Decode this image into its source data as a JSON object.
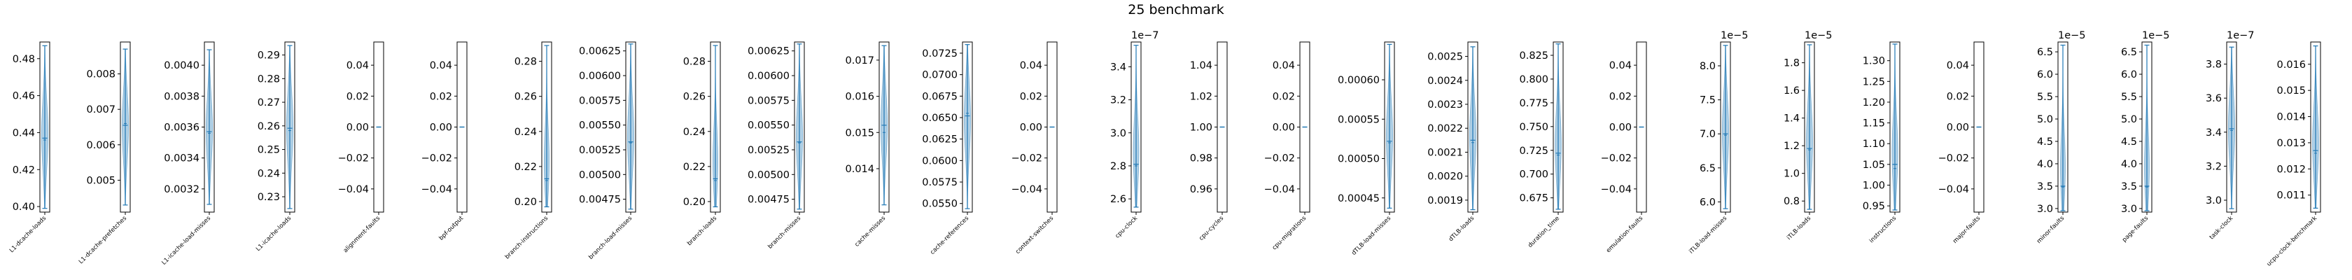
{
  "chart_data": {
    "type": "violin",
    "title": "25 benchmark",
    "grid": false,
    "panels": [
      {
        "label": "L1-dcache-loads",
        "yticks": [
          "0.40",
          "0.42",
          "0.44",
          "0.46",
          "0.48"
        ],
        "ylim": [
          0.397,
          0.489
        ],
        "min": 0.399,
        "max": 0.487,
        "mean": 0.437,
        "median": 0.436,
        "exponent": ""
      },
      {
        "label": "L1-dcache-prefetches",
        "yticks": [
          "0.005",
          "0.006",
          "0.007",
          "0.008"
        ],
        "ylim": [
          0.0041,
          0.0089
        ],
        "min": 0.0043,
        "max": 0.0087,
        "mean": 0.00655,
        "median": 0.0066,
        "exponent": ""
      },
      {
        "label": "L1-icache-load-misses",
        "yticks": [
          "0.0032",
          "0.0034",
          "0.0036",
          "0.0038",
          "0.0040"
        ],
        "ylim": [
          0.00305,
          0.00415
        ],
        "min": 0.0031,
        "max": 0.0041,
        "mean": 0.00357,
        "median": 0.00356,
        "exponent": ""
      },
      {
        "label": "L1-icache-loads",
        "yticks": [
          "0.23",
          "0.24",
          "0.25",
          "0.26",
          "0.27",
          "0.28",
          "0.29"
        ],
        "ylim": [
          0.2235,
          0.2955
        ],
        "min": 0.225,
        "max": 0.294,
        "mean": 0.259,
        "median": 0.258,
        "exponent": ""
      },
      {
        "label": "alignment-faults",
        "yticks": [
          "−0.04",
          "−0.02",
          "0.00",
          "0.02",
          "0.04"
        ],
        "ylim": [
          -0.055,
          0.055
        ],
        "min": 0.0,
        "max": 0.0,
        "mean": 0.0,
        "median": 0.0,
        "exponent": ""
      },
      {
        "label": "bpf-output",
        "yticks": [
          "−0.04",
          "−0.02",
          "0.00",
          "0.02",
          "0.04"
        ],
        "ylim": [
          -0.055,
          0.055
        ],
        "min": 0.0,
        "max": 0.0,
        "mean": 0.0,
        "median": 0.0,
        "exponent": ""
      },
      {
        "label": "branch-instructions",
        "yticks": [
          "0.20",
          "0.22",
          "0.24",
          "0.26",
          "0.28"
        ],
        "ylim": [
          0.194,
          0.291
        ],
        "min": 0.197,
        "max": 0.289,
        "mean": 0.213,
        "median": 0.212,
        "exponent": ""
      },
      {
        "label": "branch-load-misses",
        "yticks": [
          "0.00475",
          "0.00500",
          "0.00525",
          "0.00550",
          "0.00575",
          "0.00600",
          "0.00625"
        ],
        "ylim": [
          0.00462,
          0.00634
        ],
        "min": 0.00465,
        "max": 0.00632,
        "mean": 0.00533,
        "median": 0.00532,
        "exponent": ""
      },
      {
        "label": "branch-loads",
        "yticks": [
          "0.20",
          "0.22",
          "0.24",
          "0.26",
          "0.28"
        ],
        "ylim": [
          0.194,
          0.291
        ],
        "min": 0.197,
        "max": 0.289,
        "mean": 0.213,
        "median": 0.212,
        "exponent": ""
      },
      {
        "label": "branch-misses",
        "yticks": [
          "0.00475",
          "0.00500",
          "0.00525",
          "0.00550",
          "0.00575",
          "0.00600",
          "0.00625"
        ],
        "ylim": [
          0.00462,
          0.00634
        ],
        "min": 0.00465,
        "max": 0.00632,
        "mean": 0.00533,
        "median": 0.00532,
        "exponent": ""
      },
      {
        "label": "cache-misses",
        "yticks": [
          "0.014",
          "0.015",
          "0.016",
          "0.017"
        ],
        "ylim": [
          0.0128,
          0.0175
        ],
        "min": 0.013,
        "max": 0.0174,
        "mean": 0.0152,
        "median": 0.015,
        "exponent": ""
      },
      {
        "label": "cache-references",
        "yticks": [
          "0.0550",
          "0.0575",
          "0.0600",
          "0.0625",
          "0.0650",
          "0.0675",
          "0.0700",
          "0.0725"
        ],
        "ylim": [
          0.054,
          0.0738
        ],
        "min": 0.0544,
        "max": 0.0735,
        "mean": 0.0652,
        "median": 0.0655,
        "exponent": ""
      },
      {
        "label": "context-switches",
        "yticks": [
          "−0.04",
          "−0.02",
          "0.00",
          "0.02",
          "0.04"
        ],
        "ylim": [
          -0.055,
          0.055
        ],
        "min": 0.0,
        "max": 0.0,
        "mean": 0.0,
        "median": 0.0,
        "exponent": ""
      },
      {
        "label": "cpu-clock",
        "yticks": [
          "2.6",
          "2.8",
          "3.0",
          "3.2",
          "3.4"
        ],
        "ylim": [
          2.52,
          3.55
        ],
        "min": 2.55,
        "max": 3.53,
        "mean": 2.81,
        "median": 2.8,
        "exponent": "1e−7"
      },
      {
        "label": "cpu-cycles",
        "yticks": [
          "0.96",
          "0.98",
          "1.00",
          "1.02",
          "1.04"
        ],
        "ylim": [
          0.945,
          1.055
        ],
        "min": 1.0,
        "max": 1.0,
        "mean": 1.0,
        "median": 1.0,
        "exponent": ""
      },
      {
        "label": "cpu-migrations",
        "yticks": [
          "−0.04",
          "−0.02",
          "0.00",
          "0.02",
          "0.04"
        ],
        "ylim": [
          -0.055,
          0.055
        ],
        "min": 0.0,
        "max": 0.0,
        "mean": 0.0,
        "median": 0.0,
        "exponent": ""
      },
      {
        "label": "dTLB-load-misses",
        "yticks": [
          "0.00045",
          "0.00050",
          "0.00055",
          "0.00060"
        ],
        "ylim": [
          0.000432,
          0.000648
        ],
        "min": 0.000437,
        "max": 0.000645,
        "mean": 0.000522,
        "median": 0.00052,
        "exponent": ""
      },
      {
        "label": "dTLB-loads",
        "yticks": [
          "0.0019",
          "0.0020",
          "0.0021",
          "0.0022",
          "0.0023",
          "0.0024",
          "0.0025"
        ],
        "ylim": [
          0.00185,
          0.00256
        ],
        "min": 0.00186,
        "max": 0.00254,
        "mean": 0.00215,
        "median": 0.00214,
        "exponent": ""
      },
      {
        "label": "duration_time",
        "yticks": [
          "0.675",
          "0.700",
          "0.725",
          "0.750",
          "0.775",
          "0.800",
          "0.825"
        ],
        "ylim": [
          0.66,
          0.839
        ],
        "min": 0.663,
        "max": 0.837,
        "mean": 0.722,
        "median": 0.72,
        "exponent": ""
      },
      {
        "label": "emulation-faults",
        "yticks": [
          "−0.04",
          "−0.02",
          "0.00",
          "0.02",
          "0.04"
        ],
        "ylim": [
          -0.055,
          0.055
        ],
        "min": 0.0,
        "max": 0.0,
        "mean": 0.0,
        "median": 0.0,
        "exponent": ""
      },
      {
        "label": "iTLB-load-misses",
        "yticks": [
          "6.0",
          "6.5",
          "7.0",
          "7.5",
          "8.0"
        ],
        "ylim": [
          5.85,
          8.35
        ],
        "min": 5.9,
        "max": 8.3,
        "mean": 7.0,
        "median": 6.98,
        "exponent": "1e−5"
      },
      {
        "label": "iTLB-loads",
        "yticks": [
          "0.8",
          "1.0",
          "1.2",
          "1.4",
          "1.6",
          "1.8"
        ],
        "ylim": [
          0.72,
          1.95
        ],
        "min": 0.74,
        "max": 1.93,
        "mean": 1.18,
        "median": 1.17,
        "exponent": "1e−5"
      },
      {
        "label": "instructions",
        "yticks": [
          "0.95",
          "1.00",
          "1.05",
          "1.10",
          "1.15",
          "1.20",
          "1.25",
          "1.30"
        ],
        "ylim": [
          0.935,
          1.345
        ],
        "min": 0.94,
        "max": 1.34,
        "mean": 1.05,
        "median": 1.04,
        "exponent": ""
      },
      {
        "label": "major-faults",
        "yticks": [
          "−0.04",
          "−0.02",
          "0.00",
          "0.02",
          "0.04"
        ],
        "ylim": [
          -0.055,
          0.055
        ],
        "min": 0.0,
        "max": 0.0,
        "mean": 0.0,
        "median": 0.0,
        "exponent": ""
      },
      {
        "label": "minor-faults",
        "yticks": [
          "3.0",
          "3.5",
          "4.0",
          "4.5",
          "5.0",
          "5.5",
          "6.0",
          "6.5"
        ],
        "ylim": [
          2.92,
          6.72
        ],
        "min": 2.95,
        "max": 6.65,
        "mean": 3.5,
        "median": 3.48,
        "exponent": "1e−5"
      },
      {
        "label": "page-faults",
        "yticks": [
          "3.0",
          "3.5",
          "4.0",
          "4.5",
          "5.0",
          "5.5",
          "6.0",
          "6.5"
        ],
        "ylim": [
          2.92,
          6.72
        ],
        "min": 2.95,
        "max": 6.65,
        "mean": 3.5,
        "median": 3.48,
        "exponent": "1e−5"
      },
      {
        "label": "task-clock",
        "yticks": [
          "3.0",
          "3.2",
          "3.4",
          "3.6",
          "3.8"
        ],
        "ylim": [
          2.93,
          3.93
        ],
        "min": 2.95,
        "max": 3.9,
        "mean": 3.42,
        "median": 3.41,
        "exponent": "1e−7"
      },
      {
        "label": "ucpu-clock-benchmark",
        "yticks": [
          "0.011",
          "0.012",
          "0.013",
          "0.014",
          "0.015",
          "0.016"
        ],
        "ylim": [
          0.01035,
          0.01685
        ],
        "min": 0.0105,
        "max": 0.0167,
        "mean": 0.0127,
        "median": 0.0126,
        "exponent": ""
      }
    ],
    "colors": {
      "fill": "#1f77b4",
      "line": "#1f77b4",
      "axis": "#000000"
    }
  }
}
